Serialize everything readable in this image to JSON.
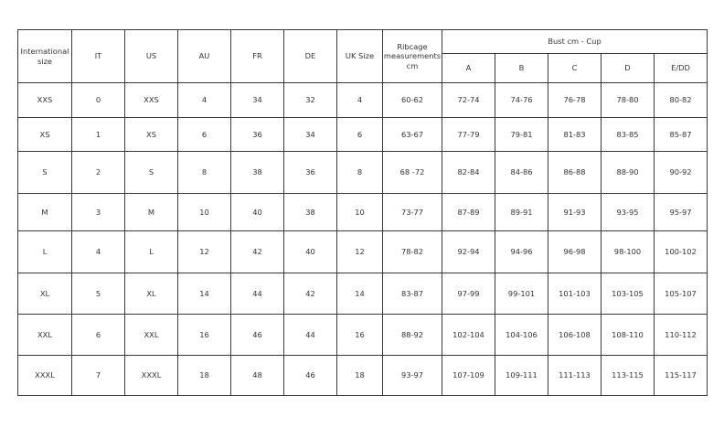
{
  "headers": [
    "International size",
    "IT",
    "US",
    "AU",
    "FR",
    "DE",
    "UK Size",
    "Ribcage measurements cm"
  ],
  "bust_header": "Bust cm - Cup",
  "cups": [
    "A",
    "B",
    "C",
    "D",
    "E/DD"
  ],
  "rows": [
    [
      "XXS",
      "0",
      "XXS",
      "4",
      "34",
      "32",
      "4",
      "60-62",
      "72-74",
      "74-76",
      "76-78",
      "78-80",
      "80-82"
    ],
    [
      "XS",
      "1",
      "XS",
      "6",
      "36",
      "34",
      "6",
      "63-67",
      "77-79",
      "79-81",
      "81-83",
      "83-85",
      "85-87"
    ],
    [
      "S",
      "2",
      "S",
      "8",
      "38",
      "36",
      "8",
      "68 -72",
      "82-84",
      "84-86",
      "86-88",
      "88-90",
      "90-92"
    ],
    [
      "M",
      "3",
      "M",
      "10",
      "40",
      "38",
      "10",
      "73-77",
      "87-89",
      "89-91",
      "91-93",
      "93-95",
      "95-97"
    ],
    [
      "L",
      "4",
      "L",
      "12",
      "42",
      "40",
      "12",
      "78-82",
      "92-94",
      "94-96",
      "96-98",
      "98-100",
      "100-102"
    ],
    [
      "XL",
      "5",
      "XL",
      "14",
      "44",
      "42",
      "14",
      "83-87",
      "97-99",
      "99-101",
      "101-103",
      "103-105",
      "105-107"
    ],
    [
      "XXL",
      "6",
      "XXL",
      "16",
      "46",
      "44",
      "16",
      "88-92",
      "102-104",
      "104-106",
      "106-108",
      "108-110",
      "110-112"
    ],
    [
      "XXXL",
      "7",
      "XXXL",
      "18",
      "48",
      "46",
      "18",
      "93-97",
      "107-109",
      "109-111",
      "111-113",
      "113-115",
      "115-117"
    ]
  ]
}
